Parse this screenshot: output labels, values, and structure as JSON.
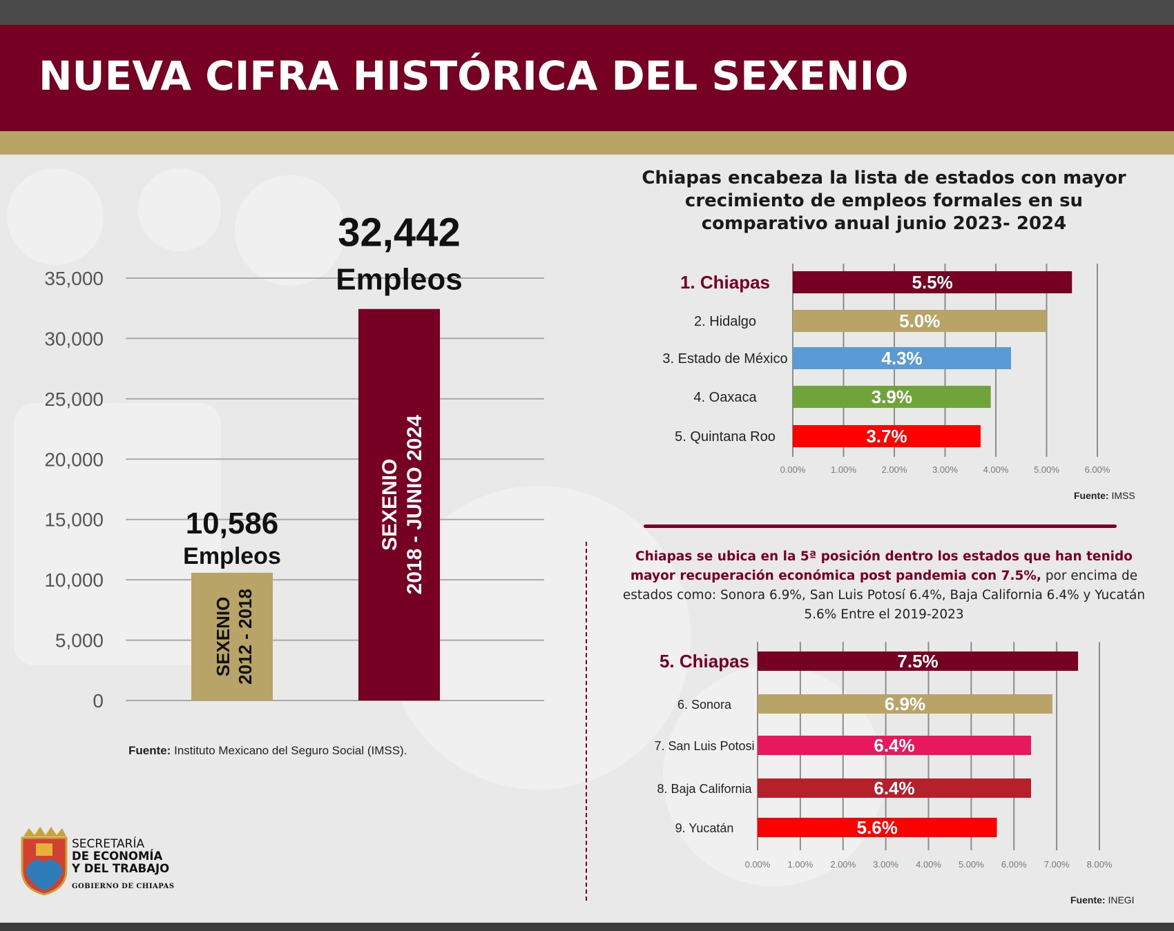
{
  "header": {
    "title": "NUEVA CIFRA HISTÓRICA DEL SEXENIO"
  },
  "colors": {
    "maroon": "#750024",
    "gold": "#b9a468",
    "blue": "#5b9bd5",
    "green": "#70a33a",
    "red": "#ff0000",
    "pink": "#e8185f",
    "darkred": "#b5202a"
  },
  "left_source": {
    "label": "Fuente:",
    "text": "Instituto Mexicano del Seguro Social (IMSS)."
  },
  "right_top": {
    "title": "Chiapas encabeza la lista de estados con mayor crecimiento de empleos formales en su comparativo anual junio 2023- 2024",
    "source_label": "Fuente:",
    "source_text": "IMSS"
  },
  "right_bottom": {
    "para_highlight": "Chiapas se ubica en la 5ª posición dentro los estados que han tenido mayor recuperación económica post pandemia con 7.5%,",
    "para_rest": "por encima de estados como: Sonora 6.9%, San Luis Potosí 6.4%, Baja California 6.4% y Yucatán 5.6% Entre el 2019-2023",
    "source_label": "Fuente:",
    "source_text": "INEGI"
  },
  "logo": {
    "line1": "SECRETARÍA",
    "line2": "DE ECONOMÍA",
    "line3": "Y DEL TRABAJO",
    "line4": "GOBIERNO DE CHIAPAS"
  },
  "chart_data": [
    {
      "type": "bar",
      "categories": [
        "SEXENIO 2012 - 2018",
        "SEXENIO 2018 - JUNIO 2024"
      ],
      "category_lines": [
        [
          "SEXENIO",
          "2012 - 2018"
        ],
        [
          "SEXENIO",
          "2018 - JUNIO 2024"
        ]
      ],
      "values": [
        10586,
        32442
      ],
      "value_labels": [
        "10,586",
        "32,442"
      ],
      "value_unit": "Empleos",
      "ylim": [
        0,
        35000
      ],
      "yticks": [
        0,
        5000,
        10000,
        15000,
        20000,
        25000,
        30000,
        35000
      ],
      "ytick_labels": [
        "0",
        "5,000",
        "10,000",
        "15,000",
        "20,000",
        "25,000",
        "30,000",
        "35,000"
      ],
      "bar_colors": [
        "#b9a468",
        "#750024"
      ],
      "grid": true
    },
    {
      "type": "bar",
      "orientation": "horizontal",
      "categories": [
        "1. Chiapas",
        "2. Hidalgo",
        "3. Estado de México",
        "4. Oaxaca",
        "5. Quintana Roo"
      ],
      "values": [
        5.5,
        5.0,
        4.3,
        3.9,
        3.7
      ],
      "value_labels": [
        "5.5%",
        "5.0%",
        "4.3%",
        "3.9%",
        "3.7%"
      ],
      "bar_colors": [
        "#750024",
        "#b9a468",
        "#5b9bd5",
        "#70a33a",
        "#ff0000"
      ],
      "xlim": [
        0,
        6
      ],
      "xtick_labels": [
        "0.00%",
        "1.00%",
        "2.00%",
        "3.00%",
        "4.00%",
        "5.00%",
        "6.00%"
      ],
      "grid": true
    },
    {
      "type": "bar",
      "orientation": "horizontal",
      "categories": [
        "5. Chiapas",
        "6. Sonora",
        "7. San Luis Potosi",
        "8. Baja California",
        "9. Yucatán"
      ],
      "values": [
        7.5,
        6.9,
        6.4,
        6.4,
        5.6
      ],
      "value_labels": [
        "7.5%",
        "6.9%",
        "6.4%",
        "6.4%",
        "5.6%"
      ],
      "bar_colors": [
        "#750024",
        "#b9a468",
        "#e8185f",
        "#b5202a",
        "#ff0000"
      ],
      "xlim": [
        0,
        8
      ],
      "xtick_labels": [
        "0.00%",
        "1.00%",
        "2.00%",
        "3.00%",
        "4.00%",
        "5.00%",
        "6.00%",
        "7.00%",
        "8.00%"
      ],
      "grid": true
    }
  ]
}
